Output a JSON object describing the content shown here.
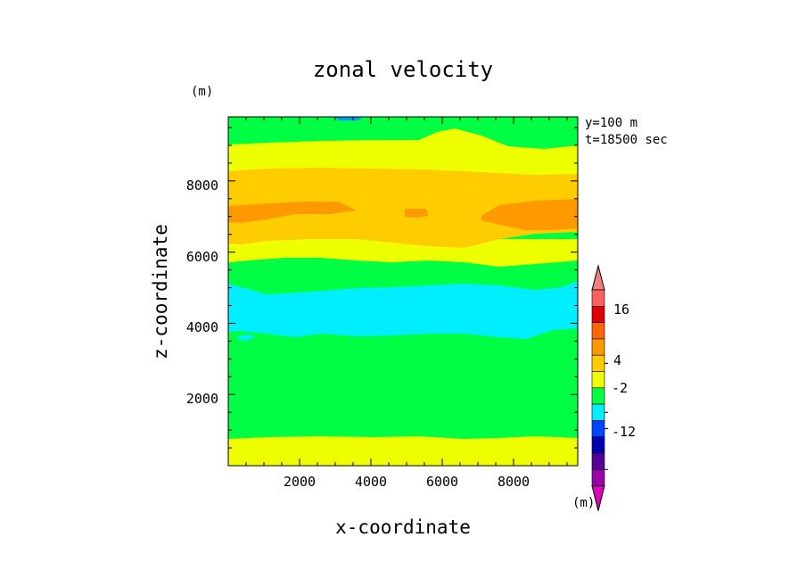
{
  "chart_data": {
    "type": "heatmap",
    "title": "zonal velocity",
    "xlabel": "x-coordinate",
    "ylabel": "z-coordinate",
    "y_unit": "(m)",
    "x_unit": "(m)",
    "annotations": [
      "y=100 m",
      "t=18500 sec"
    ],
    "xlim": [
      0,
      9800
    ],
    "ylim": [
      0,
      9800
    ],
    "x_ticks": [
      2000,
      4000,
      6000,
      8000
    ],
    "y_ticks": [
      2000,
      4000,
      6000,
      8000
    ],
    "grid": false,
    "legend": "colorbar, right",
    "colorbar": {
      "labels": [
        {
          "value": "16",
          "level": 5.5
        },
        {
          "value": "4",
          "level": 8.5
        },
        {
          "value": "-2",
          "level": 9.5
        },
        {
          "value": "-12",
          "level": 12
        }
      ],
      "colors_top_to_bottom": [
        "#f08080",
        "#ff6060",
        "#e00000",
        "#ff6600",
        "#ff9900",
        "#ffcc00",
        "#eeff00",
        "#00ff44",
        "#00eeff",
        "#0044ff",
        "#0000b0",
        "#550099",
        "#9900aa",
        "#dd00bb"
      ]
    },
    "colors": {
      "yellow": "#eeff00",
      "light_orange": "#ffcc00",
      "orange": "#ff9900",
      "green": "#00ff44",
      "cyan": "#00eeff",
      "blue": "#0099ff"
    },
    "bands": [
      {
        "color": "yellow",
        "z_low": 0,
        "z_high": 800
      },
      {
        "color": "green",
        "z_low": 800,
        "z_high": 3800
      },
      {
        "color": "cyan",
        "z_low": 3800,
        "z_high": 5000
      },
      {
        "color": "green",
        "z_low": 5000,
        "z_high": 5800
      },
      {
        "color": "yellow",
        "z_low": 5800,
        "z_high": 6300
      },
      {
        "color": "light_orange",
        "z_low": 6300,
        "z_high": 8300
      },
      {
        "color": "yellow",
        "z_low": 8300,
        "z_high": 9000
      },
      {
        "color": "green",
        "z_low": 9000,
        "z_high": 9800
      }
    ]
  }
}
